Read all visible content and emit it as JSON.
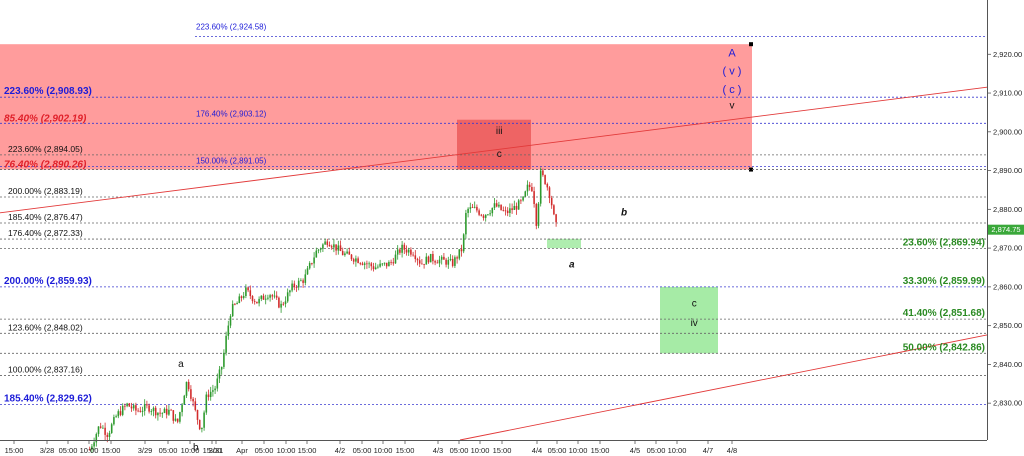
{
  "chart_data": {
    "type": "line",
    "ylim": [
      2820.5,
      2934.0
    ],
    "last_price": "2,874.75",
    "colors": {
      "up": "#2e9a2e",
      "down": "#d22b2b",
      "red_zone": "#ff9c9c",
      "dark_red_zone": "#ee6464",
      "green_zone": "#a6eba6",
      "trend": "#e23a3a"
    },
    "y_ticks": [
      {
        "value": 2920,
        "label": "2,920.00"
      },
      {
        "value": 2910,
        "label": "2,910.00"
      },
      {
        "value": 2900,
        "label": "2,900.00"
      },
      {
        "value": 2890,
        "label": "2,890.00"
      },
      {
        "value": 2880,
        "label": "2,880.00"
      },
      {
        "value": 2870,
        "label": "2,870.00"
      },
      {
        "value": 2860,
        "label": "2,860.00"
      },
      {
        "value": 2850,
        "label": "2,850.00"
      },
      {
        "value": 2840,
        "label": "2,840.00"
      },
      {
        "value": 2830,
        "label": "2,830.00"
      }
    ],
    "x_ticks": [
      "15:00",
      "3/28",
      "05:00",
      "10:00",
      "15:00",
      "3/29",
      "05:00",
      "10:00",
      "15:00",
      "3/31",
      "Apr",
      "05:00",
      "10:00",
      "15:00",
      "4/2",
      "05:00",
      "10:00",
      "15:00",
      "4/3",
      "05:00",
      "10:00",
      "15:00",
      "4/4",
      "05:00",
      "10:00",
      "15:00",
      "4/5",
      "05:00",
      "10:00",
      "4/7",
      "4/8"
    ],
    "fib_levels": [
      {
        "value": 2924.58,
        "label": "223.60% (2,924.58)",
        "style": "blue-sm",
        "label_pos": "top",
        "line": "blue"
      },
      {
        "value": 2908.93,
        "label": "223.60% (2,908.93)",
        "style": "blue-lg",
        "label_pos": "left",
        "line": "blue"
      },
      {
        "value": 2902.19,
        "label": "85.40% (2,902.19)",
        "style": "red",
        "label_pos": "left",
        "line": "blue"
      },
      {
        "value": 2903.12,
        "label": "176.40% (2,903.12)",
        "style": "blue-sm",
        "label_pos": "mid",
        "line": "none"
      },
      {
        "value": 2894.05,
        "label": "223.60% (2,894.05)",
        "style": "black",
        "label_pos": "left",
        "line": "gray"
      },
      {
        "value": 2890.26,
        "label": "76.40% (2,890.26)",
        "style": "red",
        "label_pos": "left",
        "line": "gray"
      },
      {
        "value": 2891.05,
        "label": "150.00% (2,891.05)",
        "style": "blue-sm",
        "label_pos": "mid",
        "line": "blue"
      },
      {
        "value": 2883.19,
        "label": "200.00% (2,883.19)",
        "style": "black",
        "label_pos": "left",
        "line": "gray"
      },
      {
        "value": 2876.47,
        "label": "185.40% (2,876.47)",
        "style": "black",
        "label_pos": "left",
        "line": "gray"
      },
      {
        "value": 2872.33,
        "label": "176.40% (2,872.33)",
        "style": "black",
        "label_pos": "left",
        "line": "gray"
      },
      {
        "value": 2869.94,
        "label": "23.60% (2,869.94)",
        "style": "green",
        "label_pos": "right",
        "line": "gray"
      },
      {
        "value": 2859.99,
        "label": "33.30% (2,859.99)",
        "style": "green",
        "label_pos": "right",
        "line": "blue"
      },
      {
        "value": 2859.93,
        "label": "200.00% (2,859.93)",
        "style": "blue-lg",
        "label_pos": "left",
        "line": "none"
      },
      {
        "value": 2851.68,
        "label": "41.40% (2,851.68)",
        "style": "green",
        "label_pos": "right",
        "line": "gray"
      },
      {
        "value": 2848.02,
        "label": "123.60% (2,848.02)",
        "style": "black",
        "label_pos": "left",
        "line": "gray"
      },
      {
        "value": 2842.86,
        "label": "50.00% (2,842.86)",
        "style": "green",
        "label_pos": "right",
        "line": "gray"
      },
      {
        "value": 2837.16,
        "label": "100.00% (2,837.16)",
        "style": "black",
        "label_pos": "left",
        "line": "gray"
      },
      {
        "value": 2829.62,
        "label": "185.40% (2,829.62)",
        "style": "blue-lg",
        "label_pos": "left",
        "line": "blue"
      }
    ],
    "zones": [
      {
        "kind": "red",
        "y1": 2890.26,
        "y2": 2922.6,
        "x_from": 0.0,
        "x_to": 1.0
      },
      {
        "kind": "dark_red",
        "y1": 2890.26,
        "y2": 2903.12,
        "x_from": 0.6,
        "x_to": 0.67
      },
      {
        "kind": "light_green",
        "y1": 2870.0,
        "y2": 2872.4,
        "x_from": 0.715,
        "x_to": 0.76
      },
      {
        "kind": "green",
        "y1": 2842.86,
        "y2": 2859.99,
        "x_from": 0.865,
        "x_to": 0.94
      }
    ],
    "wave_labels": [
      {
        "text": "A",
        "style": "blue",
        "x": 0.965,
        "y": 2920.5
      },
      {
        "text": "( v )",
        "style": "blue",
        "x": 0.965,
        "y": 2915.8
      },
      {
        "text": "( c )",
        "style": "blue",
        "x": 0.965,
        "y": 2911.0
      },
      {
        "text": "v",
        "style": "plain",
        "x": 0.965,
        "y": 2907.0
      },
      {
        "text": "iii",
        "style": "plain",
        "x": 0.64,
        "y": 2900.5
      },
      {
        "text": "c",
        "style": "plain",
        "x": 0.64,
        "y": 2894.5
      },
      {
        "text": "b",
        "style": "italic",
        "x": 0.8,
        "y": 2879.5
      },
      {
        "text": "a",
        "style": "italic",
        "x": 0.733,
        "y": 2866.0
      },
      {
        "text": "c",
        "style": "plain",
        "x": 0.89,
        "y": 2856.0
      },
      {
        "text": "iv",
        "style": "plain",
        "x": 0.89,
        "y": 2851.0
      },
      {
        "text": "a",
        "style": "plain",
        "x": 0.232,
        "y": 2840.3
      },
      {
        "text": "b",
        "style": "plain",
        "x": 0.251,
        "y": 2818.8
      }
    ],
    "trendlines": [
      {
        "x1": 0.0,
        "y1": 2879.1,
        "x2": 1.0,
        "y2": 2911.5
      },
      {
        "x1": 0.6,
        "y1": 2820.5,
        "x2": 1.0,
        "y2": 2847.6
      }
    ],
    "price_path": [
      [
        0.115,
        2818.0
      ],
      [
        0.128,
        2824.5
      ],
      [
        0.138,
        2822.0
      ],
      [
        0.15,
        2827.0
      ],
      [
        0.163,
        2829.6
      ],
      [
        0.175,
        2828.0
      ],
      [
        0.19,
        2829.0
      ],
      [
        0.205,
        2827.4
      ],
      [
        0.218,
        2828.0
      ],
      [
        0.227,
        2824.5
      ],
      [
        0.24,
        2836.0
      ],
      [
        0.25,
        2828.0
      ],
      [
        0.258,
        2823.0
      ],
      [
        0.265,
        2832.0
      ],
      [
        0.276,
        2834.0
      ],
      [
        0.285,
        2840.0
      ],
      [
        0.29,
        2847.0
      ],
      [
        0.296,
        2854.0
      ],
      [
        0.305,
        2856.0
      ],
      [
        0.315,
        2859.0
      ],
      [
        0.33,
        2856.0
      ],
      [
        0.345,
        2858.5
      ],
      [
        0.36,
        2855.0
      ],
      [
        0.375,
        2860.0
      ],
      [
        0.39,
        2862.0
      ],
      [
        0.405,
        2869.0
      ],
      [
        0.42,
        2872.0
      ],
      [
        0.44,
        2868.5
      ],
      [
        0.46,
        2867.0
      ],
      [
        0.48,
        2865.0
      ],
      [
        0.5,
        2866.0
      ],
      [
        0.515,
        2870.0
      ],
      [
        0.53,
        2869.0
      ],
      [
        0.54,
        2866.0
      ],
      [
        0.55,
        2867.5
      ],
      [
        0.56,
        2867.0
      ],
      [
        0.573,
        2866.5
      ],
      [
        0.58,
        2866.0
      ],
      [
        0.593,
        2870.0
      ],
      [
        0.598,
        2880.0
      ],
      [
        0.61,
        2880.0
      ],
      [
        0.62,
        2878.5
      ],
      [
        0.635,
        2881.0
      ],
      [
        0.648,
        2879.0
      ],
      [
        0.66,
        2880.5
      ],
      [
        0.67,
        2882.0
      ],
      [
        0.677,
        2886.0
      ],
      [
        0.683,
        2885.5
      ],
      [
        0.688,
        2876.0
      ],
      [
        0.693,
        2889.2
      ],
      [
        0.7,
        2887.0
      ],
      [
        0.706,
        2883.0
      ],
      [
        0.71,
        2878.0
      ],
      [
        0.715,
        2874.0
      ]
    ]
  }
}
